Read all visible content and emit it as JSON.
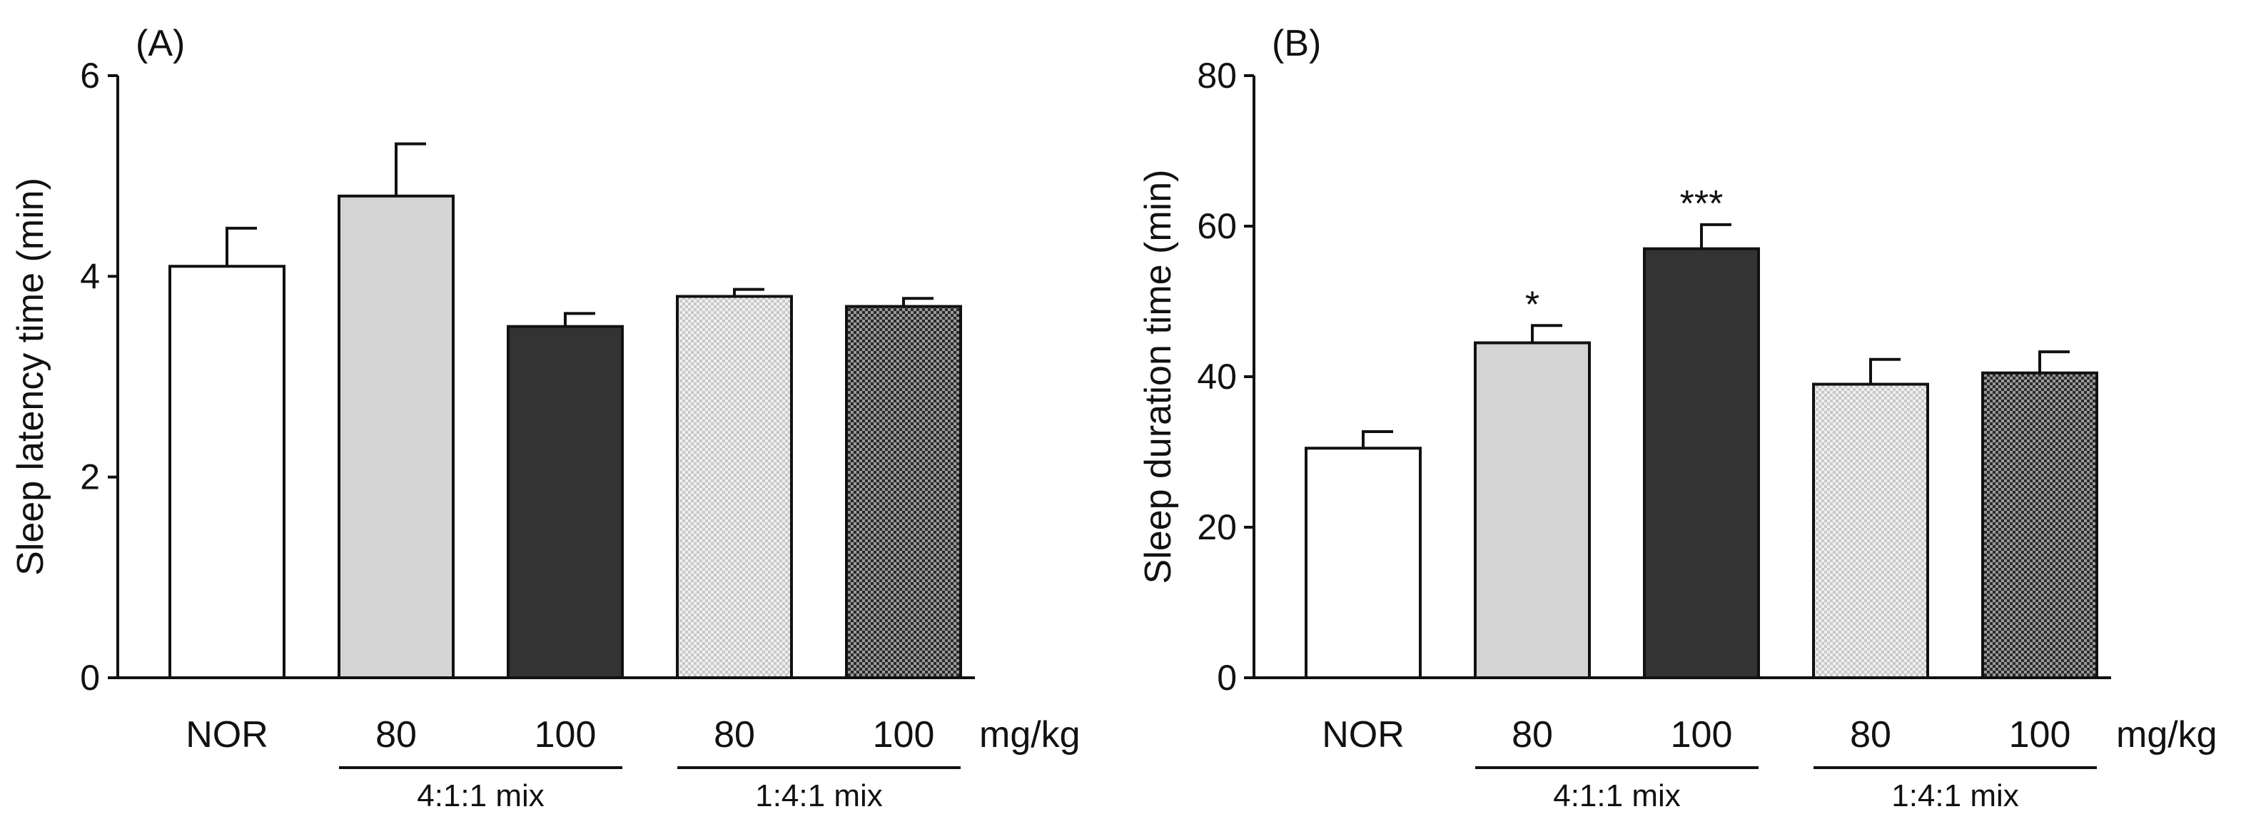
{
  "chart_data": [
    {
      "type": "bar",
      "panel_label": "(A)",
      "ylabel": "Sleep latency time (min)",
      "ylim": [
        0,
        6
      ],
      "yticks": [
        0,
        2,
        4,
        6
      ],
      "categories": [
        "NOR",
        "80",
        "100",
        "80",
        "100"
      ],
      "unit_label": "mg/kg",
      "groups": [
        {
          "label": "4:1:1 mix",
          "from": 1,
          "to": 2
        },
        {
          "label": "1:4:1 mix",
          "from": 3,
          "to": 4
        }
      ],
      "values": [
        4.1,
        4.8,
        3.5,
        3.8,
        3.7
      ],
      "errors": [
        0.38,
        0.52,
        0.13,
        0.07,
        0.08
      ],
      "significance": [
        "",
        "",
        "",
        "",
        ""
      ],
      "bar_styles": [
        "white",
        "lightgray",
        "darkgray",
        "light-checker",
        "dark-checker"
      ]
    },
    {
      "type": "bar",
      "panel_label": "(B)",
      "ylabel": "Sleep duration time (min)",
      "ylim": [
        0,
        80
      ],
      "yticks": [
        0,
        20,
        40,
        60,
        80
      ],
      "categories": [
        "NOR",
        "80",
        "100",
        "80",
        "100"
      ],
      "unit_label": "mg/kg",
      "groups": [
        {
          "label": "4:1:1 mix",
          "from": 1,
          "to": 2
        },
        {
          "label": "1:4:1 mix",
          "from": 3,
          "to": 4
        }
      ],
      "values": [
        30.5,
        44.5,
        57.0,
        39.0,
        40.5
      ],
      "errors": [
        2.2,
        2.3,
        3.2,
        3.3,
        2.8
      ],
      "significance": [
        "",
        "*",
        "***",
        "",
        ""
      ],
      "bar_styles": [
        "white",
        "lightgray",
        "darkgray",
        "light-checker",
        "dark-checker"
      ]
    }
  ]
}
